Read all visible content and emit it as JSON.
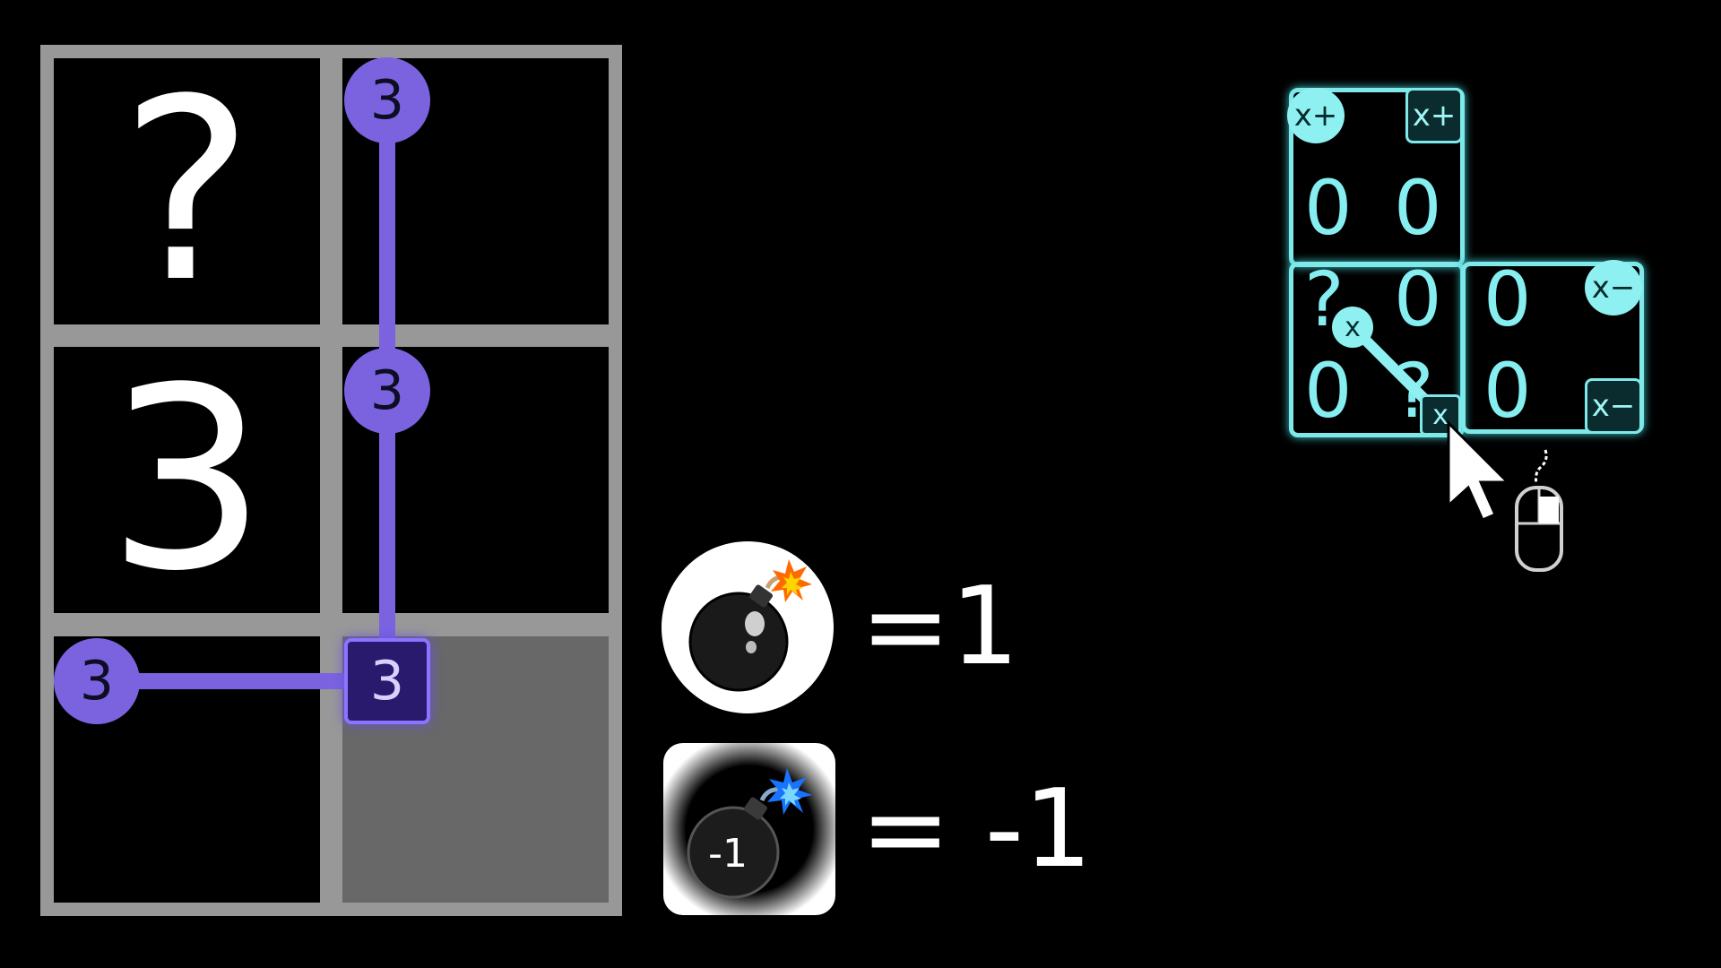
{
  "board": {
    "cells": [
      {
        "glyph": "?"
      },
      {
        "glyph": ""
      },
      {
        "glyph": "3"
      },
      {
        "glyph": ""
      },
      {
        "glyph": ""
      },
      {
        "glyph": ""
      }
    ],
    "markers": [
      {
        "label": "3",
        "shape": "circle"
      },
      {
        "label": "3",
        "shape": "circle"
      },
      {
        "label": "3",
        "shape": "square"
      },
      {
        "label": "3",
        "shape": "circle"
      }
    ],
    "colors": {
      "grid": "#989898",
      "cell": "#000000",
      "selected_cell": "#686868",
      "marker": "#7b63e0"
    }
  },
  "legend": {
    "bomb_positive": {
      "icon": "bomb-icon",
      "text": "=1"
    },
    "bomb_negative": {
      "icon": "negative-bomb-icon",
      "badge": "-1",
      "text": "= -1"
    }
  },
  "mini_diagram": {
    "color": "#7fe9ea",
    "top_box": {
      "tag_left": "x+",
      "tag_right": "x+",
      "values": [
        "0",
        "0"
      ]
    },
    "bottom_box": {
      "grid": [
        "?",
        "0",
        "0",
        "0",
        "?",
        "0"
      ],
      "tag_right_top": "x−",
      "tag_right_bottom": "x−",
      "drag_start": "x",
      "drag_end": "x"
    },
    "cursor_icon": "mouse-pointer-icon",
    "mouse_icon": "mouse-left-click-icon"
  }
}
